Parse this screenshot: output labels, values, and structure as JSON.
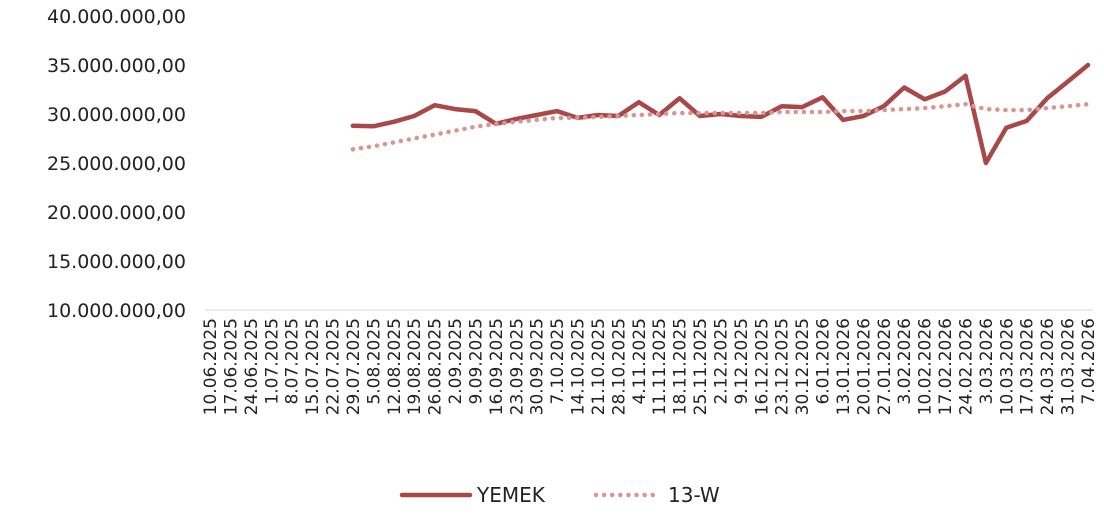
{
  "chart_data": {
    "type": "line",
    "title": "",
    "xlabel": "",
    "ylabel": "",
    "ylim": [
      10000000,
      40000000
    ],
    "yticks": [
      {
        "value": 10000000,
        "label": "10.000.000,00"
      },
      {
        "value": 15000000,
        "label": "15.000.000,00"
      },
      {
        "value": 20000000,
        "label": "20.000.000,00"
      },
      {
        "value": 25000000,
        "label": "25.000.000,00"
      },
      {
        "value": 30000000,
        "label": "30.000.000,00"
      },
      {
        "value": 35000000,
        "label": "35.000.000,00"
      },
      {
        "value": 40000000,
        "label": "40.000.000,00"
      }
    ],
    "grid": false,
    "legend_position": "bottom",
    "categories": [
      "10.06.2025",
      "17.06.2025",
      "24.06.2025",
      "1.07.2025",
      "8.07.2025",
      "15.07.2025",
      "22.07.2025",
      "29.07.2025",
      "5.08.2025",
      "12.08.2025",
      "19.08.2025",
      "26.08.2025",
      "2.09.2025",
      "9.09.2025",
      "16.09.2025",
      "23.09.2025",
      "30.09.2025",
      "7.10.2025",
      "14.10.2025",
      "21.10.2025",
      "28.10.2025",
      "4.11.2025",
      "11.11.2025",
      "18.11.2025",
      "25.11.2025",
      "2.12.2025",
      "9.12.2025",
      "16.12.2025",
      "23.12.2025",
      "30.12.2025",
      "6.01.2026",
      "13.01.2026",
      "20.01.2026",
      "27.01.2026",
      "3.02.2026",
      "10.02.2026",
      "17.02.2026",
      "24.02.2026",
      "3.03.2026",
      "10.03.2026",
      "17.03.2026",
      "24.03.2026",
      "31.03.2026",
      "7.04.2026"
    ],
    "series": [
      {
        "name": "YEMEK",
        "color": "#A84848",
        "style": "solid",
        "values": [
          null,
          null,
          null,
          null,
          null,
          null,
          null,
          28800000,
          28750000,
          29200000,
          29800000,
          30900000,
          30500000,
          30300000,
          29000000,
          29500000,
          29900000,
          30300000,
          29600000,
          29900000,
          29800000,
          31200000,
          29900000,
          31600000,
          29800000,
          30000000,
          29800000,
          29700000,
          30800000,
          30700000,
          31700000,
          29400000,
          29800000,
          30800000,
          32700000,
          31500000,
          32300000,
          33900000,
          25000000,
          28600000,
          29300000,
          31600000,
          33300000,
          35000000
        ]
      },
      {
        "name": "13-W",
        "color": "#D99494",
        "style": "dotted",
        "values": [
          null,
          null,
          null,
          null,
          null,
          null,
          null,
          26400000,
          26700000,
          27100000,
          27500000,
          27900000,
          28300000,
          28700000,
          29000000,
          29200000,
          29400000,
          29600000,
          29600000,
          29700000,
          29800000,
          29900000,
          30000000,
          30100000,
          30100000,
          30100000,
          30100000,
          30100000,
          30200000,
          30200000,
          30200000,
          30300000,
          30300000,
          30400000,
          30500000,
          30600000,
          30800000,
          31000000,
          30500000,
          30400000,
          30400000,
          30600000,
          30800000,
          31000000
        ]
      }
    ]
  }
}
